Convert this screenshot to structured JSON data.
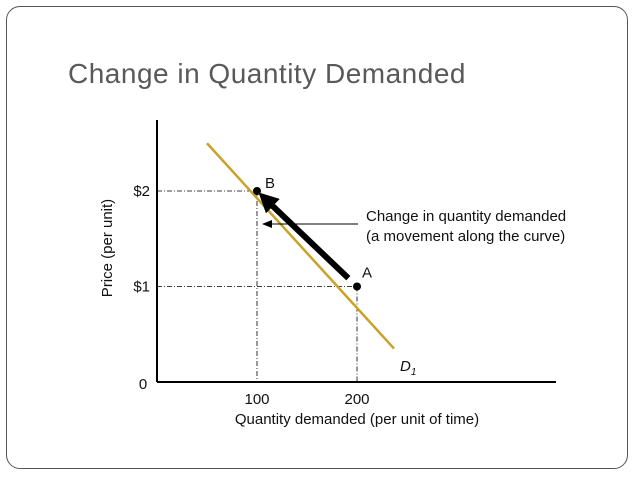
{
  "slide": {
    "title": "Change in Quantity Demanded"
  },
  "chart_data": {
    "type": "line",
    "title": "Change in Quantity Demanded",
    "xlabel": "Quantity demanded (per unit of time)",
    "ylabel": "Price (per unit)",
    "origin_label": "0",
    "xlim": [
      0,
      400
    ],
    "ylim": [
      0,
      2.85
    ],
    "x_ticks": [
      {
        "value": 100,
        "label": "100"
      },
      {
        "value": 200,
        "label": "200"
      }
    ],
    "y_ticks": [
      {
        "value": 1,
        "label": "$1"
      },
      {
        "value": 2,
        "label": "$2"
      }
    ],
    "series": [
      {
        "name": "D",
        "name_subscript": "1",
        "color": "#C9A227",
        "x": [
          50,
          237
        ],
        "y": [
          2.5,
          0.35
        ]
      }
    ],
    "points": [
      {
        "label": "A",
        "x": 200,
        "y": 1
      },
      {
        "label": "B",
        "x": 100,
        "y": 2
      }
    ],
    "movement": {
      "from": "A",
      "to": "B",
      "color": "#000000"
    },
    "annotation": {
      "lines": [
        "Change in quantity demanded",
        "(a movement along the curve)"
      ]
    },
    "grid": false
  }
}
